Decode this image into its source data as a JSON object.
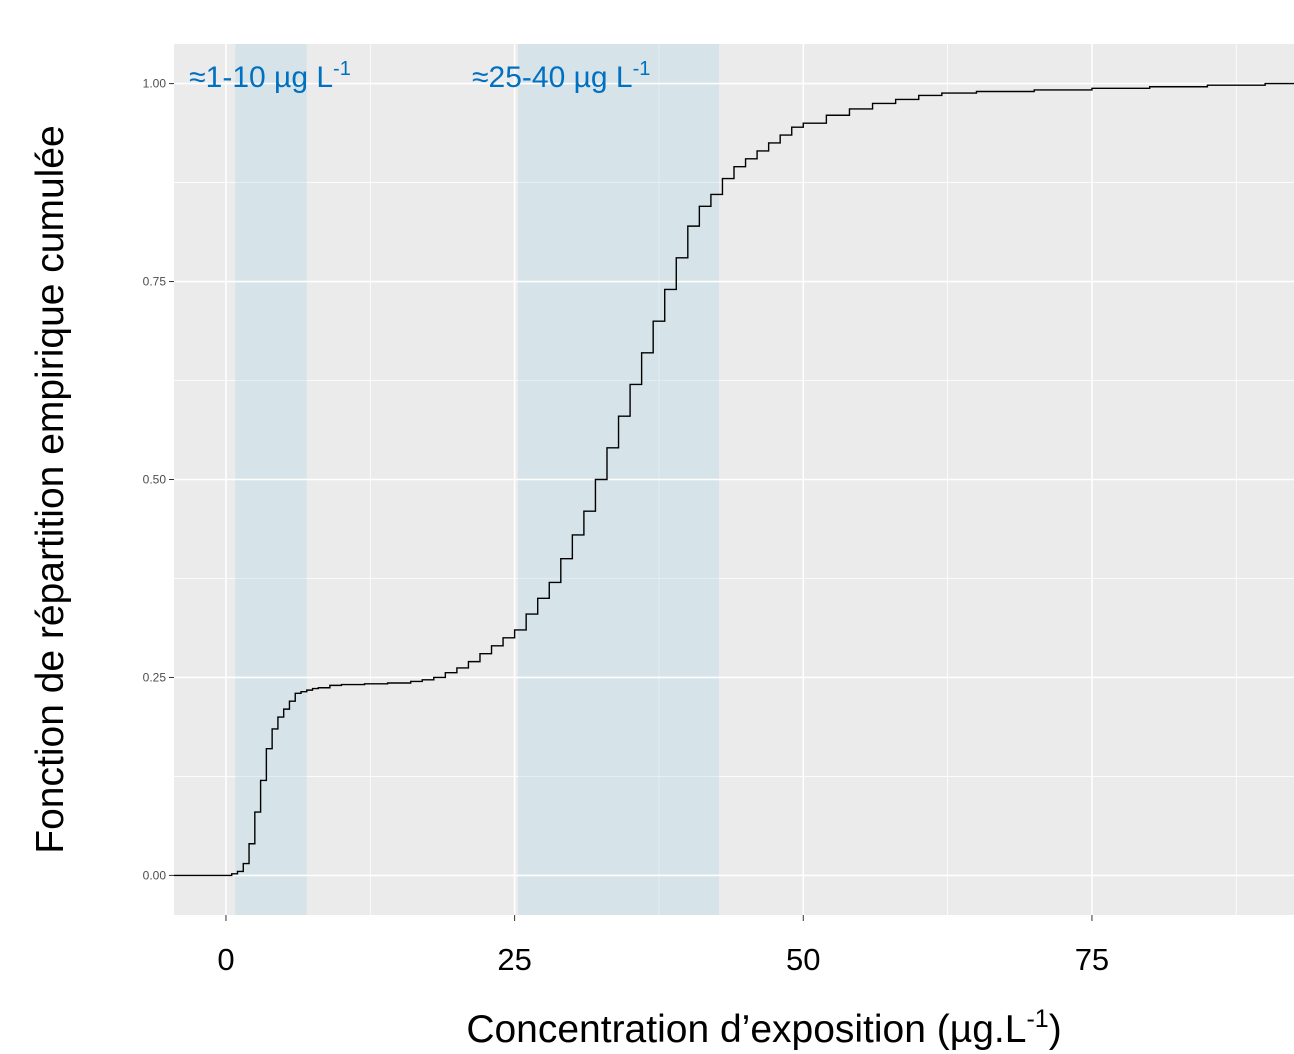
{
  "chart_data": {
    "type": "line",
    "subtype": "empirical-cdf-step",
    "xlabel": {
      "main": "Concentration d’exposition (µg.L",
      "sup": "-1",
      "end": ")"
    },
    "ylabel": "Fonction de répartition empirique cumulée",
    "xlim": [
      -4.5,
      92.5
    ],
    "ylim": [
      -0.05,
      1.05
    ],
    "x_ticks": [
      0,
      25,
      50,
      75
    ],
    "y_ticks": [
      0.0,
      0.25,
      0.5,
      0.75,
      1.0
    ],
    "y_tick_labels": [
      "0.00",
      "0.25",
      "0.50",
      "0.75",
      "1.00"
    ],
    "grid": true,
    "background": "#ebebeb",
    "line_color": "#000000",
    "bands": [
      {
        "x_start": 0.8,
        "x_end": 7.0,
        "label_main": "≈1-10 µg L",
        "label_sup": "-1",
        "color": "#add8e6"
      },
      {
        "x_start": 25.3,
        "x_end": 42.7,
        "label_main": "≈25-40 µg L",
        "label_sup": "-1",
        "color": "#add8e6"
      }
    ],
    "series": [
      {
        "x": [
          -4.5,
          0,
          0.5,
          1,
          1.5,
          2,
          2.5,
          3,
          3.5,
          4,
          4.5,
          5,
          5.5,
          6,
          6.5,
          7,
          7.5,
          8,
          9,
          10,
          12,
          14,
          16,
          17,
          18,
          19,
          20,
          21,
          22,
          23,
          24,
          25,
          26,
          27,
          28,
          29,
          30,
          31,
          32,
          33,
          34,
          35,
          36,
          37,
          38,
          39,
          40,
          41,
          42,
          43,
          44,
          45,
          46,
          47,
          48,
          49,
          50,
          52,
          54,
          56,
          58,
          60,
          62,
          65,
          70,
          75,
          80,
          85,
          90,
          92.5
        ],
        "y": [
          0.0,
          0.0,
          0.002,
          0.005,
          0.015,
          0.04,
          0.08,
          0.12,
          0.16,
          0.185,
          0.2,
          0.21,
          0.22,
          0.23,
          0.232,
          0.234,
          0.236,
          0.237,
          0.24,
          0.241,
          0.242,
          0.243,
          0.245,
          0.247,
          0.25,
          0.256,
          0.262,
          0.27,
          0.28,
          0.29,
          0.3,
          0.31,
          0.33,
          0.35,
          0.37,
          0.4,
          0.43,
          0.46,
          0.5,
          0.54,
          0.58,
          0.62,
          0.66,
          0.7,
          0.74,
          0.78,
          0.82,
          0.845,
          0.86,
          0.88,
          0.895,
          0.905,
          0.915,
          0.925,
          0.935,
          0.945,
          0.95,
          0.96,
          0.968,
          0.975,
          0.98,
          0.985,
          0.988,
          0.99,
          0.992,
          0.994,
          0.996,
          0.998,
          1.0,
          1.0
        ]
      }
    ]
  }
}
